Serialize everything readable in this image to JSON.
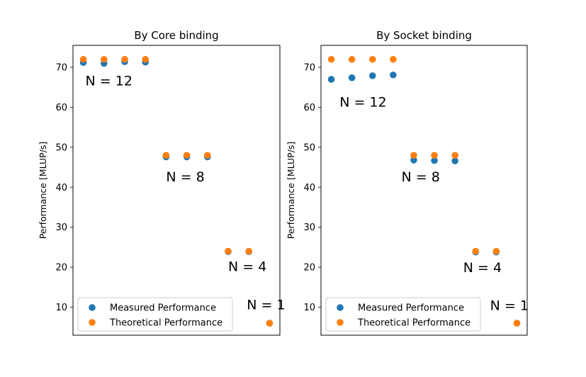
{
  "colors": {
    "measured": "#1f77b4",
    "theoretical": "#ff7f0e"
  },
  "chart_data": [
    {
      "type": "scatter",
      "title": "By Core binding",
      "xlabel": "",
      "ylabel": "Performance [MLUP/s]",
      "ylim": [
        3,
        75.5
      ],
      "xlim": [
        -0.5,
        9.5
      ],
      "yticks": [
        10,
        20,
        30,
        40,
        50,
        60,
        70
      ],
      "x_ticks_visible": false,
      "legend_position": "lower-left",
      "series": [
        {
          "name": "Measured Performance",
          "x": [
            0,
            1,
            2,
            3,
            4,
            5,
            6,
            7,
            8,
            9
          ],
          "y": [
            71.2,
            71.0,
            71.4,
            71.3,
            47.6,
            47.6,
            47.6,
            23.9,
            23.9,
            6.0
          ]
        },
        {
          "name": "Theoretical Performance",
          "x": [
            0,
            1,
            2,
            3,
            4,
            5,
            6,
            7,
            8,
            9
          ],
          "y": [
            72.0,
            72.0,
            72.0,
            72.0,
            48.0,
            48.0,
            48.0,
            24.0,
            24.0,
            6.0
          ]
        }
      ],
      "annotations": [
        {
          "text": "N = 12",
          "x": 0.1,
          "y": 65.5
        },
        {
          "text": "N = 8",
          "x": 4.0,
          "y": 41.5
        },
        {
          "text": "N = 4",
          "x": 7.0,
          "y": 19.0
        },
        {
          "text": "N = 1",
          "x": 7.9,
          "y": 9.5
        }
      ]
    },
    {
      "type": "scatter",
      "title": "By Socket binding",
      "xlabel": "",
      "ylabel": "Performance [MLUP/s]",
      "ylim": [
        3,
        75.5
      ],
      "xlim": [
        -0.5,
        9.5
      ],
      "yticks": [
        10,
        20,
        30,
        40,
        50,
        60,
        70
      ],
      "x_ticks_visible": false,
      "legend_position": "lower-left",
      "series": [
        {
          "name": "Measured Performance",
          "x": [
            0,
            1,
            2,
            3,
            4,
            5,
            6,
            7,
            8,
            9
          ],
          "y": [
            67.0,
            67.4,
            67.9,
            68.1,
            46.8,
            46.7,
            46.6,
            23.8,
            23.8,
            6.0
          ]
        },
        {
          "name": "Theoretical Performance",
          "x": [
            0,
            1,
            2,
            3,
            4,
            5,
            6,
            7,
            8,
            9
          ],
          "y": [
            72.0,
            72.0,
            72.0,
            72.0,
            48.0,
            48.0,
            48.0,
            24.0,
            24.0,
            6.0
          ]
        }
      ],
      "annotations": [
        {
          "text": "N = 12",
          "x": 0.4,
          "y": 60.2
        },
        {
          "text": "N = 8",
          "x": 3.4,
          "y": 41.5
        },
        {
          "text": "N = 4",
          "x": 6.4,
          "y": 18.8
        },
        {
          "text": "N = 1",
          "x": 7.7,
          "y": 9.3
        }
      ]
    }
  ]
}
